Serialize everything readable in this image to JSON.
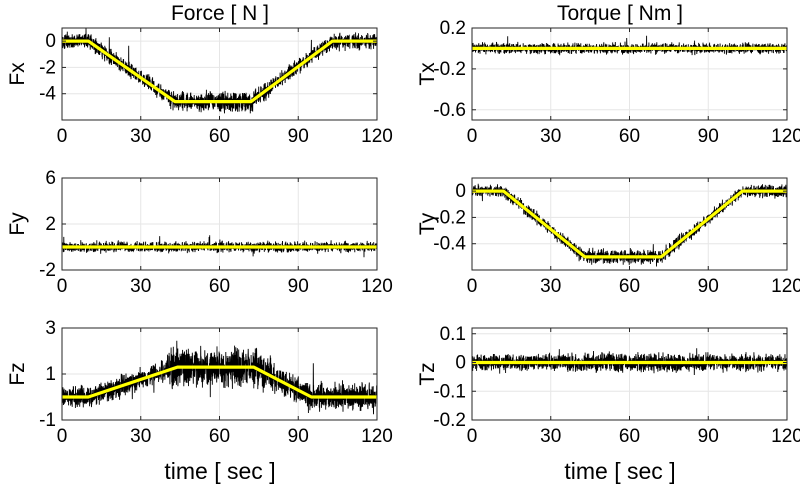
{
  "figure": {
    "col_titles": [
      "Force [ N ]",
      "Torque [ Nm ]"
    ],
    "xlabel": "time [ sec ]"
  },
  "colors": {
    "noise": "#000000",
    "trend": "#ffff00",
    "grid": "#e6e6e6",
    "axes": "#262626"
  },
  "chart_data": [
    {
      "id": "fx",
      "type": "line",
      "ylabel": "Fx",
      "xlim": [
        0,
        120
      ],
      "xticks": [
        0,
        30,
        60,
        90,
        120
      ],
      "ylim": [
        -6,
        1
      ],
      "yticks": [
        0,
        -2,
        -4
      ],
      "yticklabels": [
        "0",
        "-2",
        "-4"
      ],
      "grid": true,
      "noise_amp": 0.45,
      "noise_scale": [
        1,
        1.3,
        1
      ],
      "series": [
        {
          "role": "filtered",
          "x": [
            0,
            10,
            43,
            72,
            103,
            120
          ],
          "y": [
            0,
            0,
            -4.6,
            -4.6,
            0,
            0
          ]
        },
        {
          "role": "raw"
        }
      ]
    },
    {
      "id": "tx",
      "type": "line",
      "ylabel": "Tx",
      "xlim": [
        0,
        120
      ],
      "xticks": [
        0,
        30,
        60,
        90,
        120
      ],
      "ylim": [
        -0.7,
        0.2
      ],
      "yticks": [
        0.2,
        -0.2,
        -0.6
      ],
      "yticklabels": [
        "0.2",
        "-0.2",
        "-0.6"
      ],
      "grid": true,
      "noise_amp": 0.04,
      "noise_scale": [
        1,
        1,
        1
      ],
      "series": [
        {
          "role": "filtered",
          "x": [
            0,
            120
          ],
          "y": [
            0,
            0
          ]
        },
        {
          "role": "raw"
        }
      ]
    },
    {
      "id": "fy",
      "type": "line",
      "ylabel": "Fy",
      "xlim": [
        0,
        120
      ],
      "xticks": [
        0,
        30,
        60,
        90,
        120
      ],
      "ylim": [
        -2,
        6
      ],
      "yticks": [
        6,
        2,
        -2
      ],
      "yticklabels": [
        "6",
        "2",
        "-2"
      ],
      "grid": true,
      "noise_amp": 0.35,
      "noise_scale": [
        1,
        1,
        1
      ],
      "series": [
        {
          "role": "filtered",
          "x": [
            0,
            120
          ],
          "y": [
            0,
            0
          ]
        },
        {
          "role": "raw"
        }
      ]
    },
    {
      "id": "ty",
      "type": "line",
      "ylabel": "Ty",
      "xlim": [
        0,
        120
      ],
      "xticks": [
        0,
        30,
        60,
        90,
        120
      ],
      "ylim": [
        -0.6,
        0.1
      ],
      "yticks": [
        0,
        -0.2,
        -0.4
      ],
      "yticklabels": [
        "0",
        "-0.2",
        "-0.4"
      ],
      "grid": true,
      "noise_amp": 0.035,
      "noise_scale": [
        1,
        1.2,
        1
      ],
      "series": [
        {
          "role": "filtered",
          "x": [
            0,
            12,
            43,
            72,
            103,
            120
          ],
          "y": [
            0,
            0,
            -0.5,
            -0.5,
            0,
            0
          ]
        },
        {
          "role": "raw"
        }
      ]
    },
    {
      "id": "fz",
      "type": "line",
      "ylabel": "Fz",
      "xlim": [
        0,
        120
      ],
      "xticks": [
        0,
        30,
        60,
        90,
        120
      ],
      "ylim": [
        -1,
        3
      ],
      "yticks": [
        3,
        1,
        -1
      ],
      "yticklabels": [
        "3",
        "1",
        "-1"
      ],
      "grid": true,
      "noise_amp": 0.45,
      "noise_scale": [
        0.8,
        1.5,
        1
      ],
      "series": [
        {
          "role": "filtered",
          "x": [
            0,
            10,
            44,
            73,
            95,
            120
          ],
          "y": [
            0,
            0,
            1.3,
            1.3,
            0,
            0
          ]
        },
        {
          "role": "raw"
        }
      ]
    },
    {
      "id": "tz",
      "type": "line",
      "ylabel": "Tz",
      "xlim": [
        0,
        120
      ],
      "xticks": [
        0,
        30,
        60,
        90,
        120
      ],
      "ylim": [
        -0.2,
        0.12
      ],
      "yticks": [
        0.1,
        0,
        -0.1,
        -0.2
      ],
      "yticklabels": [
        "0.1",
        "0",
        "-0.1",
        "-0.2"
      ],
      "grid": true,
      "noise_amp": 0.022,
      "noise_scale": [
        1,
        1.2,
        1
      ],
      "series": [
        {
          "role": "filtered",
          "x": [
            0,
            120
          ],
          "y": [
            0,
            0
          ]
        },
        {
          "role": "raw"
        }
      ]
    }
  ]
}
